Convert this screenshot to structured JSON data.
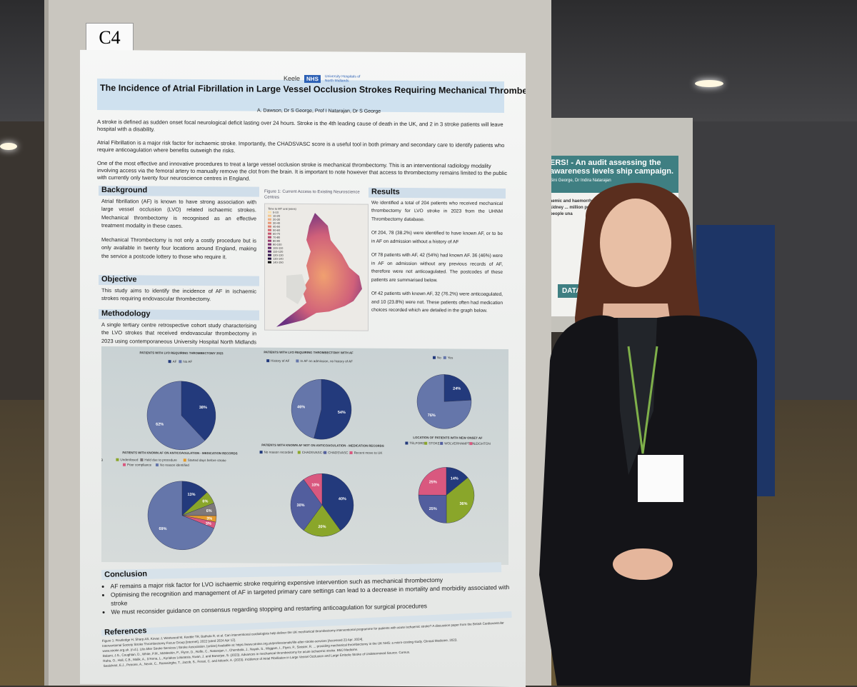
{
  "board_tag": "C4",
  "poster": {
    "logos": {
      "keele": "Keele",
      "nhs": "NHS",
      "hospital": "University Hospitals of North Midlands"
    },
    "title": "The Incidence of Atrial Fibrillation in Large Vessel Occlusion Strokes Requiring Mechanical Thrombectomy",
    "authors": "A. Dawson, Dr S George, Prof I Natarajan, Dr S George",
    "intro": [
      "A stroke is defined as sudden onset focal neurological deficit lasting over 24 hours. Stroke is the 4th leading cause of death in the UK, and 2 in 3 stroke patients will leave hospital with a disability.",
      "Atrial Fibrillation is a major risk factor for ischaemic stroke. Importantly, the CHADSVASC score is a useful tool in both primary and secondary care to identify patients who require anticoagulation where benefits outweigh the risks.",
      "One of the most effective and innovative procedures to treat a large vessel occlusion stroke is mechanical thrombectomy. This is an interventional radiology modality involving access via the femoral artery to manually remove the clot from the brain. It is important to note however that access to thrombectomy remains limited to the public with currently only twenty four neuroscience centres in England."
    ],
    "background": {
      "heading": "Background",
      "paras": [
        "Atrial fibrillation (AF) is known to have strong association with large vessel occlusion (LVO) related ischaemic strokes. Mechanical thrombectomy is recognised as an effective treatment modality in these cases.",
        "Mechanical Thrombectomy is not only a costly procedure but is only available in twenty four locations around England, making the service a postcode lottery to those who require it."
      ]
    },
    "objective": {
      "heading": "Objective",
      "text": "This study aims to identify the incidence of AF in ischaemic strokes requiring endovascular thrombectomy."
    },
    "methodology": {
      "heading": "Methodology",
      "text": "A single tertiary centre retrospective cohort study characterising the LVO strokes that received endovascular thrombectomy in 2023 using contemporaneous University Hospital North Midlands Thrombectomy database."
    },
    "figure": {
      "caption": "Figure 1: Current Access to Existing Neuroscience Centres",
      "legend_title": "Time to MT unit (mins)",
      "legend": [
        "0-10",
        "10-20",
        "20-30",
        "30-40",
        "40-50",
        "50-60",
        "60-70",
        "70-80",
        "80-90",
        "90-100",
        "100-110",
        "110-120",
        "120-130",
        "130-140",
        "140-150"
      ]
    },
    "results": {
      "heading": "Results",
      "paras": [
        "We identified a total of 204 patients who received mechanical thrombectomy for LVO stroke in 2023 from the UHNM Thrombectomy database.",
        "Of 204, 78 (38.2%) were identified to have known AF, or to be in AF on admission without a history of AF",
        "Of 78 patients with AF, 42 (54%) had known AF. 36 (46%) were in AF on admission without any previous records of AF, therefore were not anticoagulated. The postcodes of these patients are summarised below.",
        "Of 42 patients with known AF, 32 (76.2%) were anticoagulated, and 10 (23.8%) were not. These patients often had medication choices recorded which are detailed in the graph below."
      ]
    },
    "conclusion": {
      "heading": "Conclusion",
      "items": [
        "AF remains a major risk factor for LVO ischaemic stroke requiring expensive intervention such as  mechanical thrombectomy",
        "Optimising the recognition and management of AF in targeted primary care settings can lead to a decrease in mortality and morbidity associated with stroke",
        "We must reconsider guidance on consensus regarding stopping and restarting anticoagulation for surgical procedures"
      ]
    },
    "references": {
      "heading": "References",
      "items": [
        "Figure 1: Routledge H, Sharp AS, Kovac J, Westwood M, Keeble TR, Bathula R, et al. Can interventional cardiologists help deliver the UK mechanical thrombectomy interventional programme for patients with acute ischaemic stroke? A discussion paper from the British Cardiovascular Interventional Society Stroke Thrombectomy Focus Group [Internet]. 2022 [cited 2024 Apr 12].",
        "www.stroke.org.uk. (n.d.). Life After Stroke Services | Stroke Association. [online] Available at: https://www.stroke.org.uk/professionals/life-after-stroke-services [Accessed 23 Apr. 2024].",
        "Balami, J.S., Coughlan, D., White, P.M., McMeekin, P., Flynn, D., Roffe, C., Natarajan, I., Chembala, J., Nayak, S., Wiggam, I., Flynn, P., Sinister, R. ... providing mechanical thrombectomy in the UK NHS: a micro-costing study. Clinical Medicine, 2023.",
        "Raha, O., Hall, C.B., Malik, A., D'Anna, L., Kyriakos Lobotesis, Kwan, J. and Banerjee, S. (2023). Advances in mechanical thrombectomy for acute ischaemic stroke. BMJ Medicine.",
        "Sealchrist, E.J., Petrone, A., Nevin, C., Ranasinghe, T., Jacob, S., Ferari, C. and Adcock, A. (2023). Incidence of Atrial Fibrillation in Large Vessel Occlusion and Large Embolic Stroke of Undetermined Source. Cureus."
      ]
    }
  },
  "chart_data": [
    {
      "type": "pie",
      "title": "PATIENTS WITH LVO REQUIRING THROMBECTOMY 2023",
      "categories": [
        "AF",
        "No AF"
      ],
      "values": [
        38,
        62
      ],
      "colors": [
        "#233a7c",
        "#6576aa"
      ]
    },
    {
      "type": "pie",
      "title": "PATIENTS WITH LVO REQUIRING THROMBECTOMY WITH AF",
      "categories": [
        "History of AF",
        "In AF on admission, no history of AF"
      ],
      "values": [
        54,
        46
      ],
      "colors": [
        "#233a7c",
        "#6576aa"
      ]
    },
    {
      "type": "pie",
      "title": "",
      "categories": [
        "No",
        "Yes"
      ],
      "values": [
        24,
        76
      ],
      "colors": [
        "#233a7c",
        "#6576aa"
      ]
    },
    {
      "type": "pie",
      "title": "PATIENTS WITH KNOWN AF ON ANTICOAGULATION - MEDICATION RECORDS",
      "categories": [
        "Held due to side effect - bleeding",
        "Underdosed",
        "Held due to procedure",
        "Started days before stroke",
        "Poor compliance",
        "No reason identified"
      ],
      "values": [
        13,
        6,
        6,
        3,
        3,
        69
      ],
      "colors": [
        "#233a7c",
        "#8aa62a",
        "#7d787a",
        "#e39a2c",
        "#d9587f",
        "#6576aa"
      ]
    },
    {
      "type": "pie",
      "title": "PATIENTS WITH KNOWN AF NOT ON ANTICOAGULATION - MEDICATION RECORDS",
      "categories": [
        "No reason recorded",
        "CHADSVASC 0",
        "CHADSVASC 1",
        "Recent move to UK"
      ],
      "values": [
        40,
        20,
        30,
        10
      ],
      "colors": [
        "#233a7c",
        "#8aa62a",
        "#525e9e",
        "#d9587f"
      ]
    },
    {
      "type": "pie",
      "title": "LOCATION OF PATIENTS WITH NEW ONSET AF",
      "categories": [
        "TELFORD",
        "STOKE",
        "WOLVERHAMPTON",
        "LEIGHTON"
      ],
      "values": [
        14,
        36,
        25,
        25
      ],
      "colors": [
        "#233a7c",
        "#8aa62a",
        "#525e9e",
        "#d9587f"
      ]
    }
  ],
  "background_poster": {
    "title": "ERS! - An audit assessing the awareness levels ship campaign.",
    "authors": "Sini George, Dr Indira Natarajan",
    "body": "aemic and haemorrhagic stroke ... ary disease, chronic kidney ... million people), it poses a subs ... than 5.5 million people una",
    "section": "DATA ANA"
  }
}
